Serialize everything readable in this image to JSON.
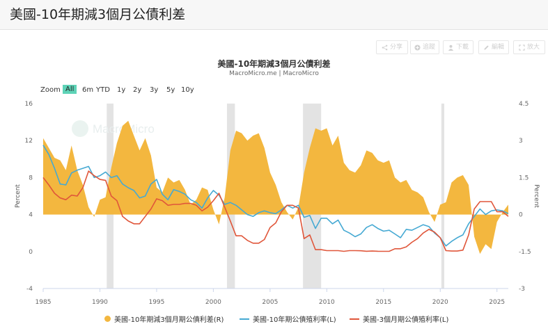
{
  "page": {
    "title": "美國-10年期減3個月公債利差"
  },
  "toolbar": {
    "share": "分享",
    "track": "追蹤",
    "download": "下載",
    "edit": "編輯",
    "expand": "放大"
  },
  "zoom": {
    "label": "Zoom",
    "buttons": [
      "All",
      "6m",
      "YTD",
      "1y",
      "2y",
      "3y",
      "5y",
      "10y"
    ],
    "active": "All"
  },
  "watermark": "MacroMicro",
  "colors": {
    "spread": "#f3b73f",
    "ten_year": "#45a9d3",
    "three_month": "#e0563a",
    "recession": "#e3e3e3",
    "active_zoom": "#5ed3b7"
  },
  "chart_data": {
    "type": "area",
    "title": "美國-10年期減3個月公債利差",
    "subtitle": "MacroMicro.me | MacroMicro",
    "xlabel": "",
    "ylabel_left": "Percent",
    "ylabel_right": "Percent",
    "xlim": [
      1985,
      2026
    ],
    "ylim_left": [
      -4,
      16
    ],
    "ylim_right": [
      -3,
      4.5
    ],
    "x_ticks": [
      "1985",
      "1990",
      "1995",
      "2000",
      "2005",
      "2010",
      "2015",
      "2020",
      "2025"
    ],
    "y_ticks_left": [
      "16",
      "12",
      "8",
      "4",
      "0",
      "-4"
    ],
    "y_ticks_right": [
      "4.5",
      "3",
      "1.5",
      "0",
      "-1.5",
      "-3"
    ],
    "grid": false,
    "legend_position": "bottom",
    "recessions": [
      [
        1990.6,
        1991.2
      ],
      [
        2001.2,
        2001.9
      ],
      [
        2007.9,
        2009.5
      ],
      [
        2020.1,
        2020.35
      ]
    ],
    "series": [
      {
        "name": "美國-10年期減3個月期公債利差(R)",
        "axis": "right",
        "type": "area",
        "x": [
          1985.0,
          1985.5,
          1986.0,
          1986.5,
          1987.0,
          1987.5,
          1988.0,
          1988.5,
          1989.0,
          1989.5,
          1990.0,
          1990.5,
          1991.0,
          1991.5,
          1992.0,
          1992.5,
          1993.0,
          1993.5,
          1994.0,
          1994.5,
          1995.0,
          1995.5,
          1996.0,
          1996.5,
          1997.0,
          1997.5,
          1998.0,
          1998.5,
          1999.0,
          1999.5,
          2000.0,
          2000.5,
          2001.0,
          2001.5,
          2002.0,
          2002.5,
          2003.0,
          2003.5,
          2004.0,
          2004.5,
          2005.0,
          2005.5,
          2006.0,
          2006.5,
          2007.0,
          2007.5,
          2008.0,
          2008.5,
          2009.0,
          2009.5,
          2010.0,
          2010.5,
          2011.0,
          2011.5,
          2012.0,
          2012.5,
          2013.0,
          2013.5,
          2014.0,
          2014.5,
          2015.0,
          2015.5,
          2016.0,
          2016.5,
          2017.0,
          2017.5,
          2018.0,
          2018.5,
          2019.0,
          2019.5,
          2020.0,
          2020.5,
          2021.0,
          2021.5,
          2022.0,
          2022.5,
          2023.0,
          2023.5,
          2024.0,
          2024.5,
          2025.0,
          2025.5,
          2026.0
        ],
        "values": [
          3.1,
          2.7,
          2.3,
          2.2,
          1.8,
          2.8,
          1.8,
          1.2,
          0.3,
          -0.1,
          0.6,
          0.7,
          1.9,
          2.9,
          3.6,
          3.8,
          3.2,
          2.6,
          3.1,
          2.4,
          1.1,
          0.9,
          1.5,
          1.3,
          1.4,
          1.0,
          0.4,
          0.6,
          1.1,
          1.0,
          0.2,
          -0.4,
          0.7,
          2.6,
          3.4,
          3.3,
          3.0,
          3.2,
          3.3,
          2.7,
          1.7,
          1.2,
          0.5,
          0.1,
          -0.2,
          0.3,
          1.7,
          2.7,
          3.5,
          3.4,
          3.5,
          2.8,
          3.2,
          2.1,
          1.8,
          1.7,
          2.0,
          2.6,
          2.5,
          2.2,
          2.1,
          2.2,
          1.5,
          1.3,
          1.4,
          1.0,
          0.9,
          0.7,
          0.1,
          -0.3,
          0.4,
          0.5,
          1.3,
          1.5,
          1.6,
          1.2,
          -0.9,
          -1.6,
          -1.2,
          -1.4,
          -0.3,
          0.1,
          0.4
        ]
      },
      {
        "name": "美國-10年期公債殖利率(L)",
        "axis": "left",
        "type": "line",
        "x": [
          1985.0,
          1985.5,
          1986.0,
          1986.5,
          1987.0,
          1987.5,
          1988.0,
          1988.5,
          1989.0,
          1989.5,
          1990.0,
          1990.5,
          1991.0,
          1991.5,
          1992.0,
          1992.5,
          1993.0,
          1993.5,
          1994.0,
          1994.5,
          1995.0,
          1995.5,
          1996.0,
          1996.5,
          1997.0,
          1997.5,
          1998.0,
          1998.5,
          1999.0,
          1999.5,
          2000.0,
          2000.5,
          2001.0,
          2001.5,
          2002.0,
          2002.5,
          2003.0,
          2003.5,
          2004.0,
          2004.5,
          2005.0,
          2005.5,
          2006.0,
          2006.5,
          2007.0,
          2007.5,
          2008.0,
          2008.5,
          2009.0,
          2009.5,
          2010.0,
          2010.5,
          2011.0,
          2011.5,
          2012.0,
          2012.5,
          2013.0,
          2013.5,
          2014.0,
          2014.5,
          2015.0,
          2015.5,
          2016.0,
          2016.5,
          2017.0,
          2017.5,
          2018.0,
          2018.5,
          2019.0,
          2019.5,
          2020.0,
          2020.5,
          2021.0,
          2021.5,
          2022.0,
          2022.5,
          2023.0,
          2023.5,
          2024.0,
          2024.5,
          2025.0,
          2025.5,
          2026.0
        ],
        "values": [
          11.5,
          10.5,
          9.0,
          7.3,
          7.2,
          8.5,
          8.8,
          9.0,
          9.2,
          8.0,
          8.2,
          8.6,
          8.0,
          8.2,
          7.3,
          6.9,
          6.6,
          5.8,
          6.0,
          7.3,
          7.8,
          6.2,
          5.6,
          6.7,
          6.5,
          6.2,
          5.6,
          5.3,
          4.7,
          5.8,
          6.6,
          6.1,
          5.1,
          5.3,
          5.0,
          4.5,
          4.0,
          3.8,
          4.2,
          4.4,
          4.2,
          4.1,
          4.5,
          5.0,
          4.7,
          5.0,
          3.7,
          3.9,
          2.5,
          3.6,
          3.6,
          3.0,
          3.4,
          2.3,
          2.0,
          1.6,
          1.9,
          2.6,
          2.9,
          2.5,
          2.2,
          2.3,
          1.9,
          1.5,
          2.4,
          2.3,
          2.6,
          2.9,
          2.7,
          2.0,
          1.5,
          0.6,
          1.1,
          1.5,
          1.8,
          3.0,
          3.8,
          4.6,
          4.0,
          4.4,
          4.5,
          4.4,
          4.1
        ]
      },
      {
        "name": "美國-3個月期公債殖利率(L)",
        "axis": "left",
        "type": "line",
        "x": [
          1985.0,
          1985.5,
          1986.0,
          1986.5,
          1987.0,
          1987.5,
          1988.0,
          1988.5,
          1989.0,
          1989.5,
          1990.0,
          1990.5,
          1991.0,
          1991.5,
          1992.0,
          1992.5,
          1993.0,
          1993.5,
          1994.0,
          1994.5,
          1995.0,
          1995.5,
          1996.0,
          1996.5,
          1997.0,
          1997.5,
          1998.0,
          1998.5,
          1999.0,
          1999.5,
          2000.0,
          2000.5,
          2001.0,
          2001.5,
          2002.0,
          2002.5,
          2003.0,
          2003.5,
          2004.0,
          2004.5,
          2005.0,
          2005.5,
          2006.0,
          2006.5,
          2007.0,
          2007.5,
          2008.0,
          2008.5,
          2009.0,
          2009.5,
          2010.0,
          2010.5,
          2011.0,
          2011.5,
          2012.0,
          2012.5,
          2013.0,
          2013.5,
          2014.0,
          2014.5,
          2015.0,
          2015.5,
          2016.0,
          2016.5,
          2017.0,
          2017.5,
          2018.0,
          2018.5,
          2019.0,
          2019.5,
          2020.0,
          2020.5,
          2021.0,
          2021.5,
          2022.0,
          2022.5,
          2023.0,
          2023.5,
          2024.0,
          2024.5,
          2025.0,
          2025.5,
          2026.0
        ],
        "values": [
          8.0,
          7.2,
          6.3,
          5.8,
          5.6,
          6.1,
          6.0,
          6.9,
          8.7,
          8.2,
          7.8,
          7.7,
          6.0,
          5.5,
          3.8,
          3.3,
          3.0,
          3.0,
          3.8,
          4.6,
          5.7,
          5.5,
          5.0,
          5.1,
          5.1,
          5.2,
          5.2,
          5.0,
          4.4,
          4.8,
          5.5,
          6.3,
          4.8,
          3.3,
          1.7,
          1.7,
          1.2,
          0.9,
          0.9,
          1.3,
          2.6,
          3.1,
          4.3,
          5.0,
          5.0,
          4.7,
          1.4,
          1.8,
          0.2,
          0.2,
          0.1,
          0.1,
          0.1,
          0.02,
          0.1,
          0.1,
          0.08,
          0.03,
          0.05,
          0.03,
          0.02,
          0.02,
          0.3,
          0.3,
          0.5,
          1.0,
          1.4,
          2.0,
          2.4,
          2.1,
          1.5,
          0.1,
          0.05,
          0.05,
          0.15,
          1.8,
          4.6,
          5.4,
          5.4,
          5.4,
          4.3,
          4.3,
          3.8
        ]
      }
    ]
  }
}
